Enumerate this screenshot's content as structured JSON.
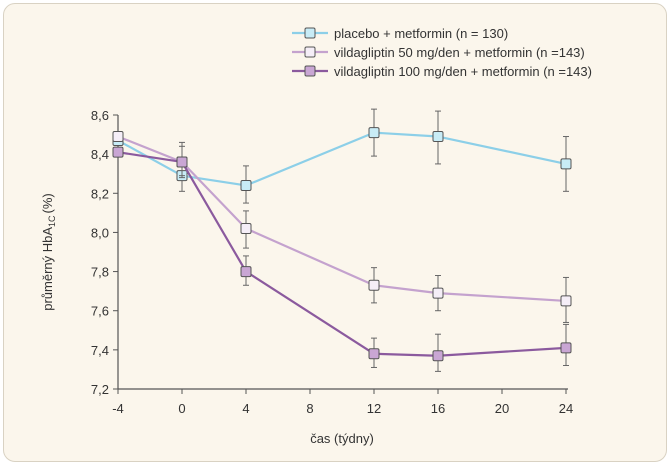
{
  "chart_data": {
    "type": "line",
    "xlabel": "čas (týdny)",
    "ylabel_main": "průměrný HbA",
    "ylabel_sub": "1C",
    "ylabel_unit": "(%)",
    "x": [
      -4,
      0,
      4,
      12,
      16,
      24
    ],
    "xticks": [
      -4,
      0,
      4,
      8,
      12,
      16,
      20,
      24
    ],
    "xtick_labels": [
      "-4",
      "0",
      "4",
      "8",
      "12",
      "16",
      "20",
      "24"
    ],
    "xlim": [
      -4,
      24
    ],
    "yticks": [
      7.2,
      7.4,
      7.6,
      7.8,
      8.0,
      8.2,
      8.4,
      8.6
    ],
    "ytick_labels": [
      "7,2",
      "7,4",
      "7,6",
      "7,8",
      "8,0",
      "8,2",
      "8,4",
      "8,6"
    ],
    "ylim": [
      7.2,
      8.6
    ],
    "grid": false,
    "legend_position": "top-right",
    "series": [
      {
        "name": "placebo + metformin (n = 130)",
        "color": "#8ccfe8",
        "marker_fill": "#c8ecf6",
        "values": [
          8.47,
          8.29,
          8.24,
          8.51,
          8.49,
          8.35
        ],
        "err_low": [
          null,
          8.21,
          8.15,
          8.39,
          8.35,
          8.21
        ],
        "err_high": [
          null,
          8.37,
          8.34,
          8.63,
          8.62,
          8.49
        ]
      },
      {
        "name": "vildagliptin 50 mg/den + metformin (n =143)",
        "color": "#c4a2ce",
        "marker_fill": "#f5eef7",
        "values": [
          8.49,
          8.36,
          8.02,
          7.73,
          7.69,
          7.65
        ],
        "err_low": [
          null,
          8.28,
          7.92,
          7.64,
          7.6,
          7.54
        ],
        "err_high": [
          null,
          8.46,
          8.11,
          7.82,
          7.78,
          7.77
        ]
      },
      {
        "name": "vildagliptin 100 mg/den + metformin (n =143)",
        "color": "#8b5a9e",
        "marker_fill": "#c9a6d4",
        "values": [
          8.41,
          8.36,
          7.8,
          7.38,
          7.37,
          7.41
        ],
        "err_low": [
          null,
          8.29,
          7.73,
          7.31,
          7.29,
          7.32
        ],
        "err_high": [
          null,
          8.44,
          7.88,
          7.46,
          7.48,
          7.53
        ]
      }
    ]
  }
}
